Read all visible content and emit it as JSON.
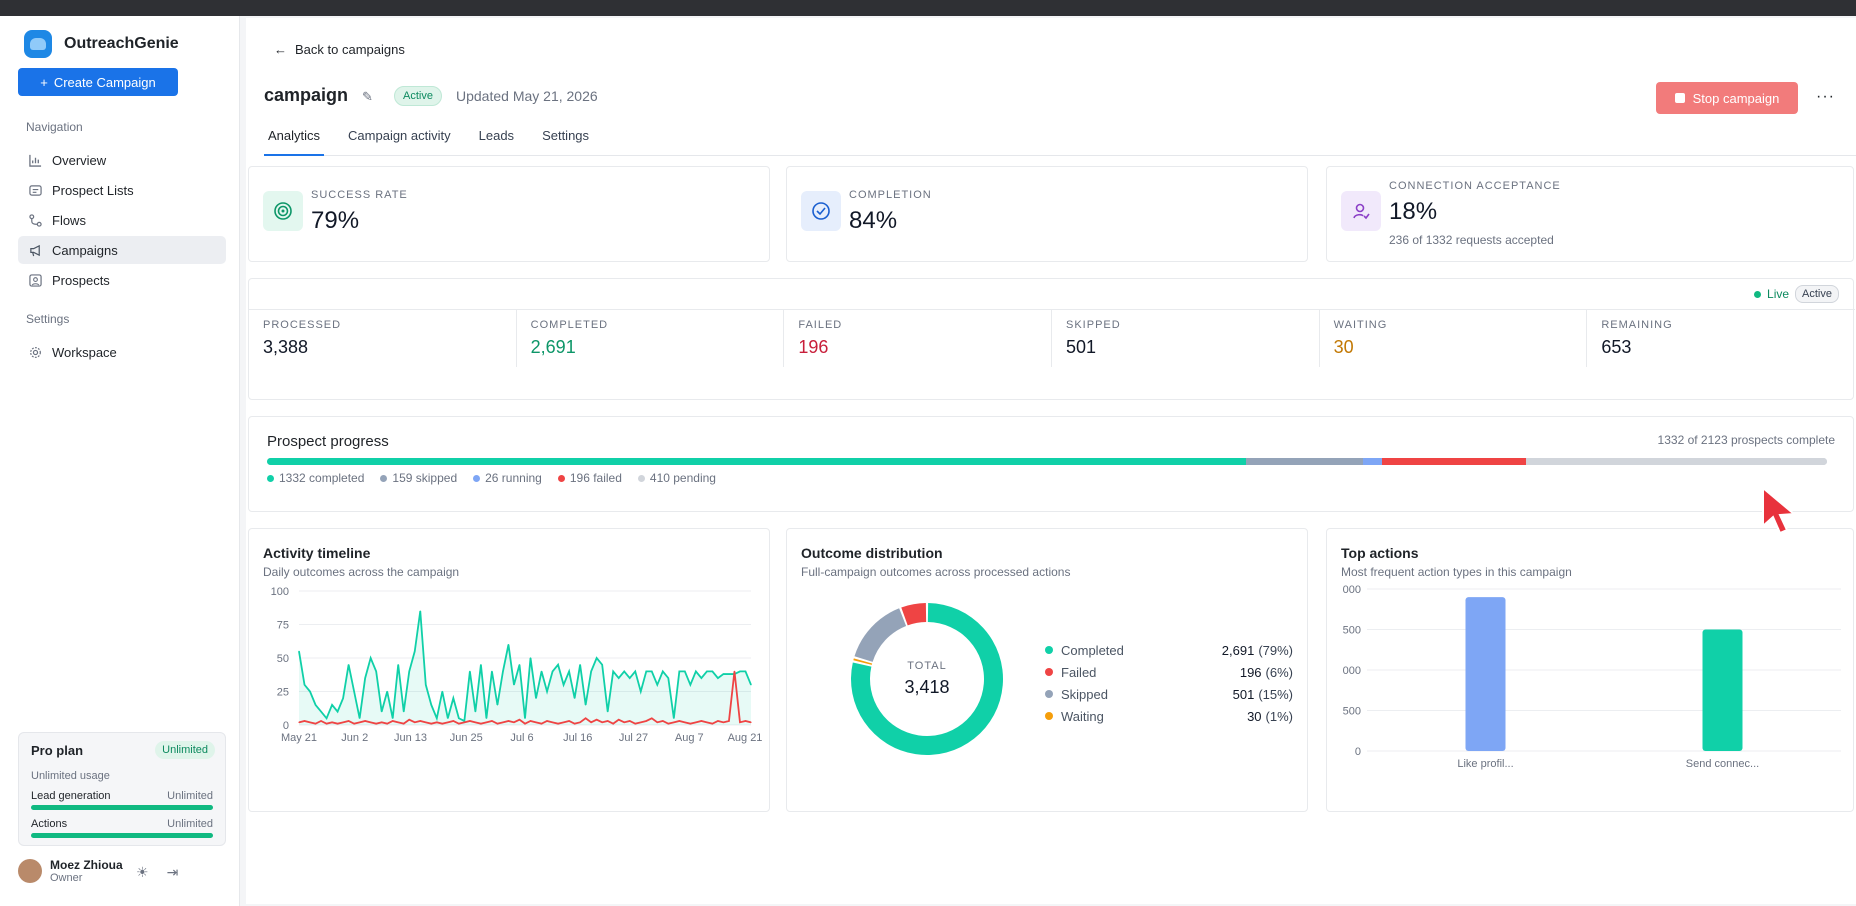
{
  "brand": {
    "name": "OutreachGenie"
  },
  "sidebar": {
    "create_label": "Create Campaign",
    "nav_heading": "Navigation",
    "items": [
      {
        "label": "Overview",
        "icon": "chart-icon"
      },
      {
        "label": "Prospect Lists",
        "icon": "list-icon"
      },
      {
        "label": "Flows",
        "icon": "flow-icon"
      },
      {
        "label": "Campaigns",
        "icon": "megaphone-icon"
      },
      {
        "label": "Prospects",
        "icon": "person-icon"
      }
    ],
    "settings_heading": "Settings",
    "workspace_label": "Workspace",
    "plan": {
      "title": "Pro plan",
      "badge": "Unlimited",
      "usage": "Unlimited usage",
      "lead_label": "Lead generation",
      "lead_value": "Unlimited",
      "actions_label": "Actions",
      "actions_value": "Unlimited"
    },
    "user": {
      "name": "Moez Zhioua",
      "role": "Owner"
    }
  },
  "header": {
    "back_label": "Back to campaigns",
    "title": "campaign",
    "status": "Active",
    "updated": "Updated May 21, 2026",
    "stop_label": "Stop campaign",
    "more": "···"
  },
  "tabs": [
    "Analytics",
    "Campaign activity",
    "Leads",
    "Settings"
  ],
  "kpis": {
    "success": {
      "label": "SUCCESS RATE",
      "value": "79%"
    },
    "completion": {
      "label": "COMPLETION",
      "value": "84%"
    },
    "connection": {
      "label": "CONNECTION ACCEPTANCE",
      "value": "18%",
      "sub": "236 of 1332 requests accepted"
    }
  },
  "live": {
    "label": "Live",
    "badge": "Active"
  },
  "stats": [
    {
      "label": "PROCESSED",
      "value": "3,388",
      "color": "#111827"
    },
    {
      "label": "COMPLETED",
      "value": "2,691",
      "color": "#0d9668"
    },
    {
      "label": "FAILED",
      "value": "196",
      "color": "#c81e3a"
    },
    {
      "label": "SKIPPED",
      "value": "501",
      "color": "#111827"
    },
    {
      "label": "WAITING",
      "value": "30",
      "color": "#c27803"
    },
    {
      "label": "REMAINING",
      "value": "653",
      "color": "#111827"
    }
  ],
  "prospect_progress": {
    "title": "Prospect progress",
    "summary": "1332 of 2123 prospects complete",
    "segments": [
      {
        "label": "1332 completed",
        "count": 1332,
        "color": "#10d0a8"
      },
      {
        "label": "159 skipped",
        "count": 159,
        "color": "#94a3b8"
      },
      {
        "label": "26 running",
        "count": 26,
        "color": "#7ea6f5"
      },
      {
        "label": "196 failed",
        "count": 196,
        "color": "#ef4444"
      },
      {
        "label": "410 pending",
        "count": 410,
        "color": "#d1d5db"
      }
    ]
  },
  "activity": {
    "title": "Activity timeline",
    "subtitle": "Daily outcomes across the campaign"
  },
  "outcome": {
    "title": "Outcome distribution",
    "subtitle": "Full-campaign outcomes across processed actions",
    "total_label": "TOTAL",
    "total_value": "3,418"
  },
  "top_actions": {
    "title": "Top actions",
    "subtitle": "Most frequent action types in this campaign"
  },
  "chart_data": [
    {
      "type": "line",
      "x_ticks": [
        "May 21",
        "Jun 2",
        "Jun 13",
        "Jun 25",
        "Jul 6",
        "Jul 16",
        "Jul 27",
        "Aug 7",
        "Aug 21"
      ],
      "ylim": [
        0,
        100
      ],
      "y_ticks": [
        0,
        25,
        50,
        75,
        100
      ],
      "series": [
        {
          "color": "#10d0a8",
          "values": [
            55,
            30,
            25,
            15,
            10,
            5,
            15,
            10,
            20,
            45,
            25,
            5,
            35,
            50,
            40,
            10,
            25,
            5,
            45,
            10,
            40,
            55,
            85,
            30,
            15,
            5,
            25,
            5,
            20,
            5,
            3,
            40,
            10,
            45,
            5,
            40,
            15,
            40,
            60,
            30,
            45,
            5,
            50,
            20,
            40,
            25,
            40,
            45,
            30,
            40,
            20,
            45,
            15,
            40,
            50,
            45,
            10,
            40,
            35,
            40,
            35,
            40,
            25,
            40,
            40,
            30,
            40,
            35,
            5,
            40,
            40,
            30,
            40,
            35,
            40,
            40,
            35,
            38,
            38,
            38,
            40,
            40,
            30
          ]
        },
        {
          "color": "#ef4444",
          "values": [
            2,
            3,
            2,
            1,
            3,
            1,
            2,
            1,
            2,
            3,
            1,
            2,
            3,
            2,
            1,
            2,
            1,
            3,
            2,
            1,
            4,
            2,
            3,
            2,
            1,
            2,
            1,
            2,
            3,
            1,
            2,
            3,
            2,
            1,
            2,
            3,
            1,
            2,
            3,
            2,
            4,
            1,
            3,
            2,
            1,
            3,
            2,
            1,
            2,
            3,
            1,
            2,
            5,
            2,
            4,
            2,
            3,
            1,
            4,
            2,
            3,
            1,
            2,
            3,
            5,
            2,
            3,
            1,
            2,
            3,
            2,
            1,
            2,
            3,
            2,
            1,
            3,
            2,
            3,
            40,
            2,
            3,
            2
          ]
        }
      ]
    },
    {
      "type": "pie",
      "slices": [
        {
          "label": "Completed",
          "value": 2691,
          "pct": "(79%)",
          "value_text": "2,691",
          "color": "#10d0a8"
        },
        {
          "label": "Failed",
          "value": 196,
          "pct": "(6%)",
          "value_text": "196",
          "color": "#ef4444"
        },
        {
          "label": "Skipped",
          "value": 501,
          "pct": "(15%)",
          "value_text": "501",
          "color": "#94a3b8"
        },
        {
          "label": "Waiting",
          "value": 30,
          "pct": "(1%)",
          "value_text": "30",
          "color": "#f59e0b"
        }
      ]
    },
    {
      "type": "bar",
      "categories": [
        "Like profil...",
        "Send connec..."
      ],
      "values": [
        1900,
        1500
      ],
      "colors": [
        "#7ea6f5",
        "#10d0a8"
      ],
      "y_tick_labels": [
        "0",
        "500",
        "000",
        "500",
        "000"
      ],
      "ylim": [
        0,
        2000
      ]
    }
  ]
}
